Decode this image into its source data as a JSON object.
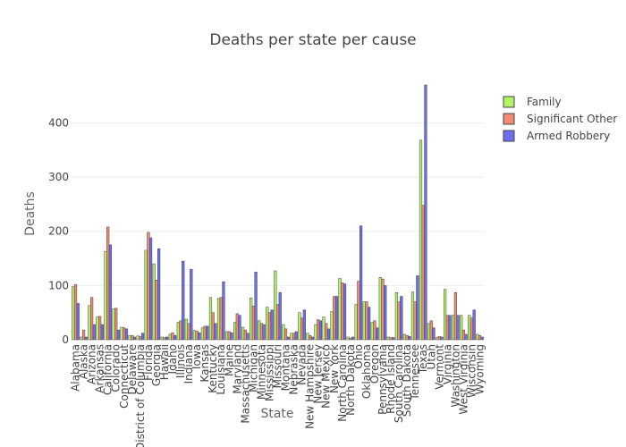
{
  "chart_data": {
    "type": "bar",
    "title": "Deaths per state per cause",
    "xlabel": "State",
    "ylabel": "Deaths",
    "ylim": [
      0,
      470
    ],
    "yticks": [
      0,
      100,
      200,
      300,
      400
    ],
    "grid": true,
    "legend_position": "top-right",
    "categories": [
      "Alabama",
      "Alaska",
      "Arizona",
      "Arkansas",
      "California",
      "Colorado",
      "Connecticut",
      "Delaware",
      "District of Columbia",
      "Florida",
      "Georgia",
      "Hawaii",
      "Idaho",
      "Illinois",
      "Indiana",
      "Iowa",
      "Kansas",
      "Kentucky",
      "Louisiana",
      "Maine",
      "Maryland",
      "Massachusetts",
      "Michigan",
      "Minnesota",
      "Mississippi",
      "Missouri",
      "Montana",
      "Nebraska",
      "Nevada",
      "New Hampshire",
      "New Jersey",
      "New Mexico",
      "New York",
      "North Carolina",
      "North Dakota",
      "Ohio",
      "Oklahoma",
      "Oregon",
      "Pennsylvania",
      "Rhode Island",
      "South Carolina",
      "South Dakota",
      "Tennessee",
      "Texas",
      "Utah",
      "Vermont",
      "Virginia",
      "Washington",
      "West Virginia",
      "Wisconsin",
      "Wyoming"
    ],
    "series": [
      {
        "name": "Family",
        "color": "#b2f266",
        "values": [
          98,
          5,
          63,
          42,
          163,
          57,
          23,
          8,
          7,
          165,
          140,
          5,
          10,
          32,
          38,
          17,
          22,
          78,
          76,
          15,
          32,
          23,
          77,
          35,
          60,
          127,
          28,
          12,
          50,
          12,
          28,
          42,
          52,
          113,
          5,
          65,
          70,
          32,
          115,
          5,
          87,
          10,
          88,
          368,
          30,
          4,
          93,
          45,
          45,
          45,
          10
        ]
      },
      {
        "name": "Significant Other",
        "color": "#f28b72",
        "values": [
          102,
          18,
          78,
          43,
          208,
          58,
          22,
          8,
          6,
          198,
          110,
          4,
          13,
          35,
          30,
          16,
          25,
          50,
          78,
          15,
          48,
          18,
          62,
          30,
          50,
          65,
          20,
          12,
          40,
          8,
          37,
          30,
          80,
          105,
          3,
          108,
          70,
          35,
          112,
          4,
          70,
          8,
          70,
          248,
          35,
          6,
          45,
          87,
          18,
          40,
          8
        ]
      },
      {
        "name": "Armed Robbery",
        "color": "#6b6ef0",
        "values": [
          67,
          5,
          28,
          28,
          175,
          18,
          20,
          5,
          12,
          188,
          168,
          5,
          8,
          145,
          130,
          13,
          25,
          30,
          107,
          13,
          45,
          12,
          125,
          28,
          55,
          87,
          5,
          15,
          55,
          5,
          35,
          20,
          80,
          103,
          5,
          210,
          60,
          22,
          100,
          4,
          80,
          6,
          118,
          470,
          22,
          5,
          45,
          45,
          10,
          55,
          5
        ]
      }
    ]
  }
}
